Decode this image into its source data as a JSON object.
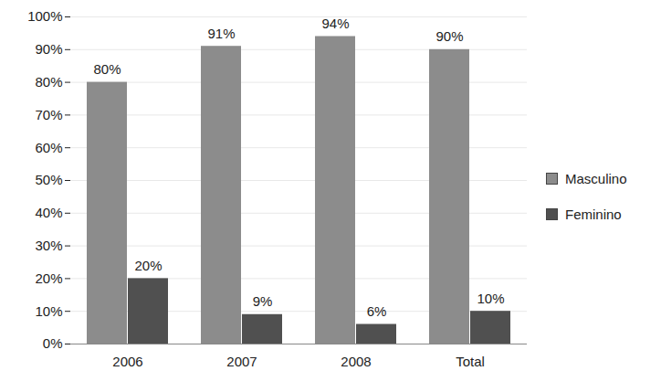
{
  "chart_data": {
    "type": "bar",
    "categories": [
      "2006",
      "2007",
      "2008",
      "Total"
    ],
    "series": [
      {
        "name": "Masculino",
        "color": "#8c8c8c",
        "values": [
          80,
          91,
          94,
          90
        ],
        "value_labels": [
          "80%",
          "91%",
          "94%",
          "90%"
        ]
      },
      {
        "name": "Feminino",
        "color": "#505050",
        "values": [
          20,
          9,
          6,
          10
        ],
        "value_labels": [
          "20%",
          "9%",
          "6%",
          "10%"
        ]
      }
    ],
    "ylim": [
      0,
      100
    ],
    "yticks": [
      {
        "value": 0,
        "label": "0%"
      },
      {
        "value": 10,
        "label": "10%"
      },
      {
        "value": 20,
        "label": "20%"
      },
      {
        "value": 30,
        "label": "30%"
      },
      {
        "value": 40,
        "label": "40%"
      },
      {
        "value": 50,
        "label": "50%"
      },
      {
        "value": 60,
        "label": "60%"
      },
      {
        "value": 70,
        "label": "70%"
      },
      {
        "value": 80,
        "label": "80%"
      },
      {
        "value": 90,
        "label": "90%"
      },
      {
        "value": 100,
        "label": "100%"
      }
    ],
    "grid": true,
    "legend": "right",
    "data_labels": true
  }
}
